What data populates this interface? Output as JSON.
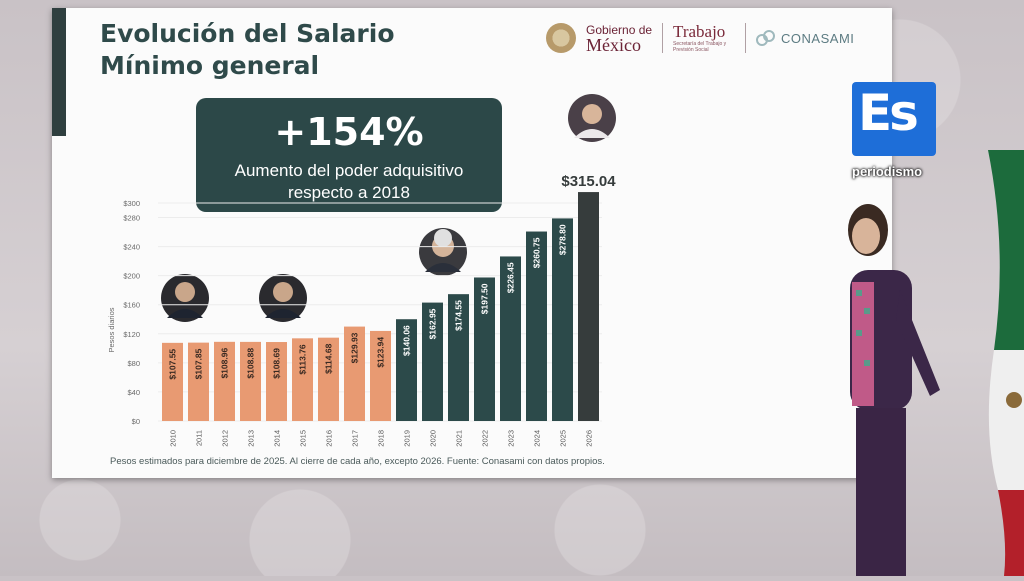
{
  "slide": {
    "title_line1": "Evolución del Salario",
    "title_line2": "Mínimo general",
    "highlight_value": "+154%",
    "highlight_text_line1": "Aumento del poder adquisitivo",
    "highlight_text_line2": "respecto a 2018",
    "footnote": "Pesos estimados para diciembre de 2025. Al cierre de cada año, excepto 2026. Fuente: Conasami con datos propios."
  },
  "logos": {
    "gobierno_line1": "Gobierno de",
    "gobierno_line2": "México",
    "trabajo": "Trabajo",
    "trabajo_sub": "Secretaría del Trabajo y Previsión Social",
    "conasami": "CONASAMI"
  },
  "watermark": {
    "letters": "Es",
    "tag": "periodismo"
  },
  "colors": {
    "orange": "#e89a72",
    "teal": "#2c4a4a",
    "highlight": "#363c3c"
  },
  "chart_data": {
    "type": "bar",
    "ylabel": "Pesos diarios",
    "ylim": [
      0,
      300
    ],
    "yticks": [
      "$0",
      "$40",
      "$80",
      "$120",
      "$160",
      "$200",
      "$240",
      "$280",
      "$300"
    ],
    "categories": [
      "2010",
      "2011",
      "2012",
      "2013",
      "2014",
      "2015",
      "2016",
      "2017",
      "2018",
      "2019",
      "2020",
      "2021",
      "2022",
      "2023",
      "2024",
      "2025",
      "2026"
    ],
    "values": [
      107.55,
      107.85,
      108.96,
      108.88,
      108.69,
      113.76,
      114.68,
      129.93,
      123.94,
      140.06,
      162.95,
      174.55,
      197.5,
      226.45,
      260.75,
      278.8,
      315.04
    ],
    "labels": [
      "$107.55",
      "$107.85",
      "$108.96",
      "$108.88",
      "$108.69",
      "$113.76",
      "$114.68",
      "$129.93",
      "$123.94",
      "$140.06",
      "$162.95",
      "$174.55",
      "$197.50",
      "$226.45",
      "$260.75",
      "$278.80",
      "$315.04"
    ],
    "bar_colors": [
      "orange",
      "orange",
      "orange",
      "orange",
      "orange",
      "orange",
      "orange",
      "orange",
      "orange",
      "teal",
      "teal",
      "teal",
      "teal",
      "teal",
      "teal",
      "teal",
      "highlight"
    ]
  }
}
